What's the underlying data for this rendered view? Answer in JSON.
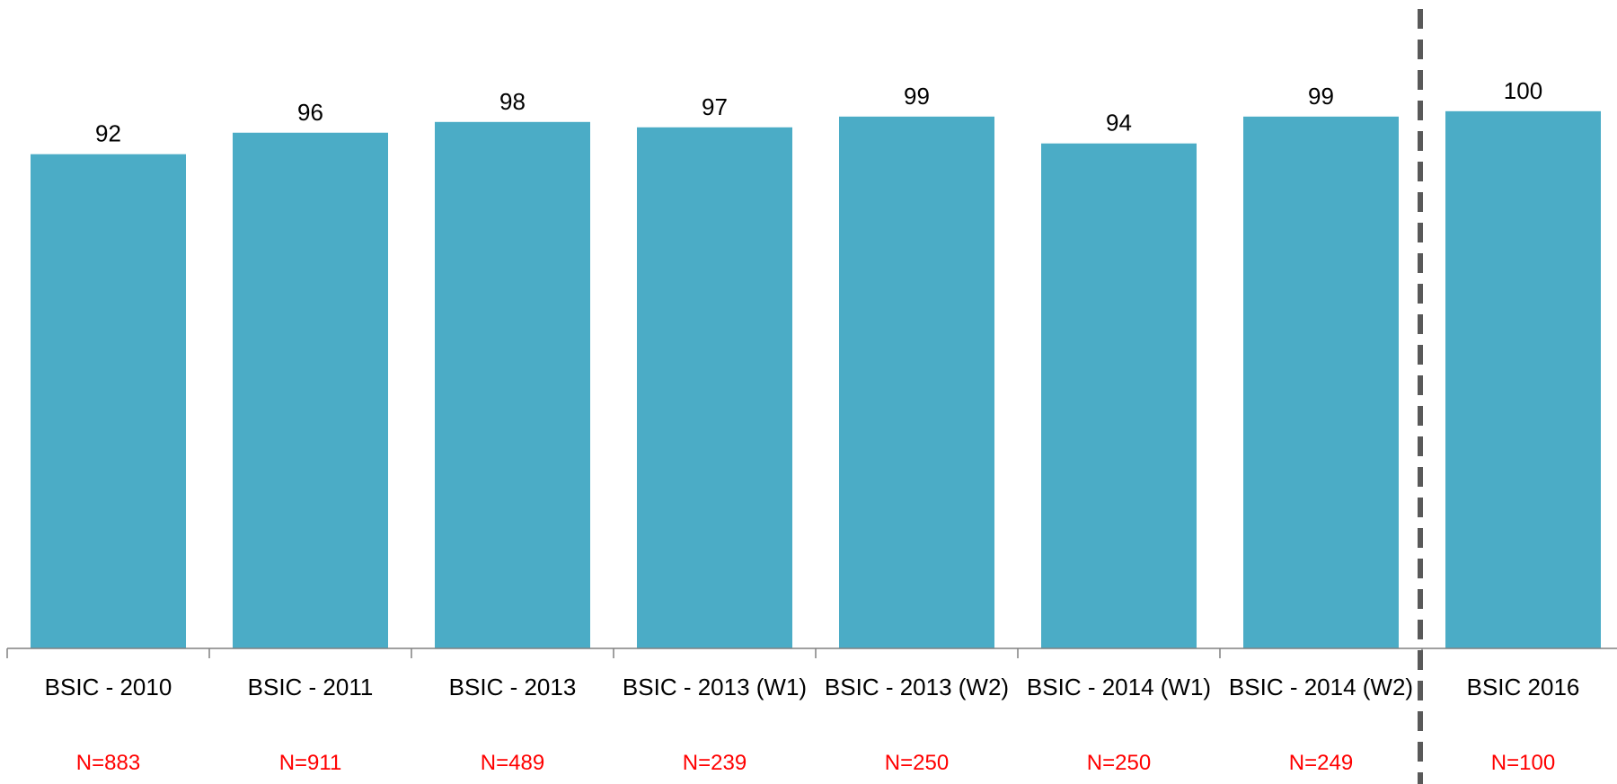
{
  "chart_data": {
    "type": "bar",
    "categories": [
      "BSIC - 2010",
      "BSIC - 2011",
      "BSIC - 2013",
      "BSIC - 2013 (W1)",
      "BSIC - 2013 (W2)",
      "BSIC - 2014 (W1)",
      "BSIC - 2014 (W2)",
      "BSIC 2016"
    ],
    "values": [
      92,
      96,
      98,
      97,
      99,
      94,
      99,
      100
    ],
    "sample_sizes": [
      "N=883",
      "N=911",
      "N=489",
      "N=239",
      "N=250",
      "N=250",
      "N=249",
      "N=100"
    ],
    "ylim": [
      0,
      100
    ],
    "grid": false,
    "legend": "none",
    "bar_color": "#4bacc6",
    "sample_size_color": "#ff0000",
    "divider_color": "#595959"
  }
}
